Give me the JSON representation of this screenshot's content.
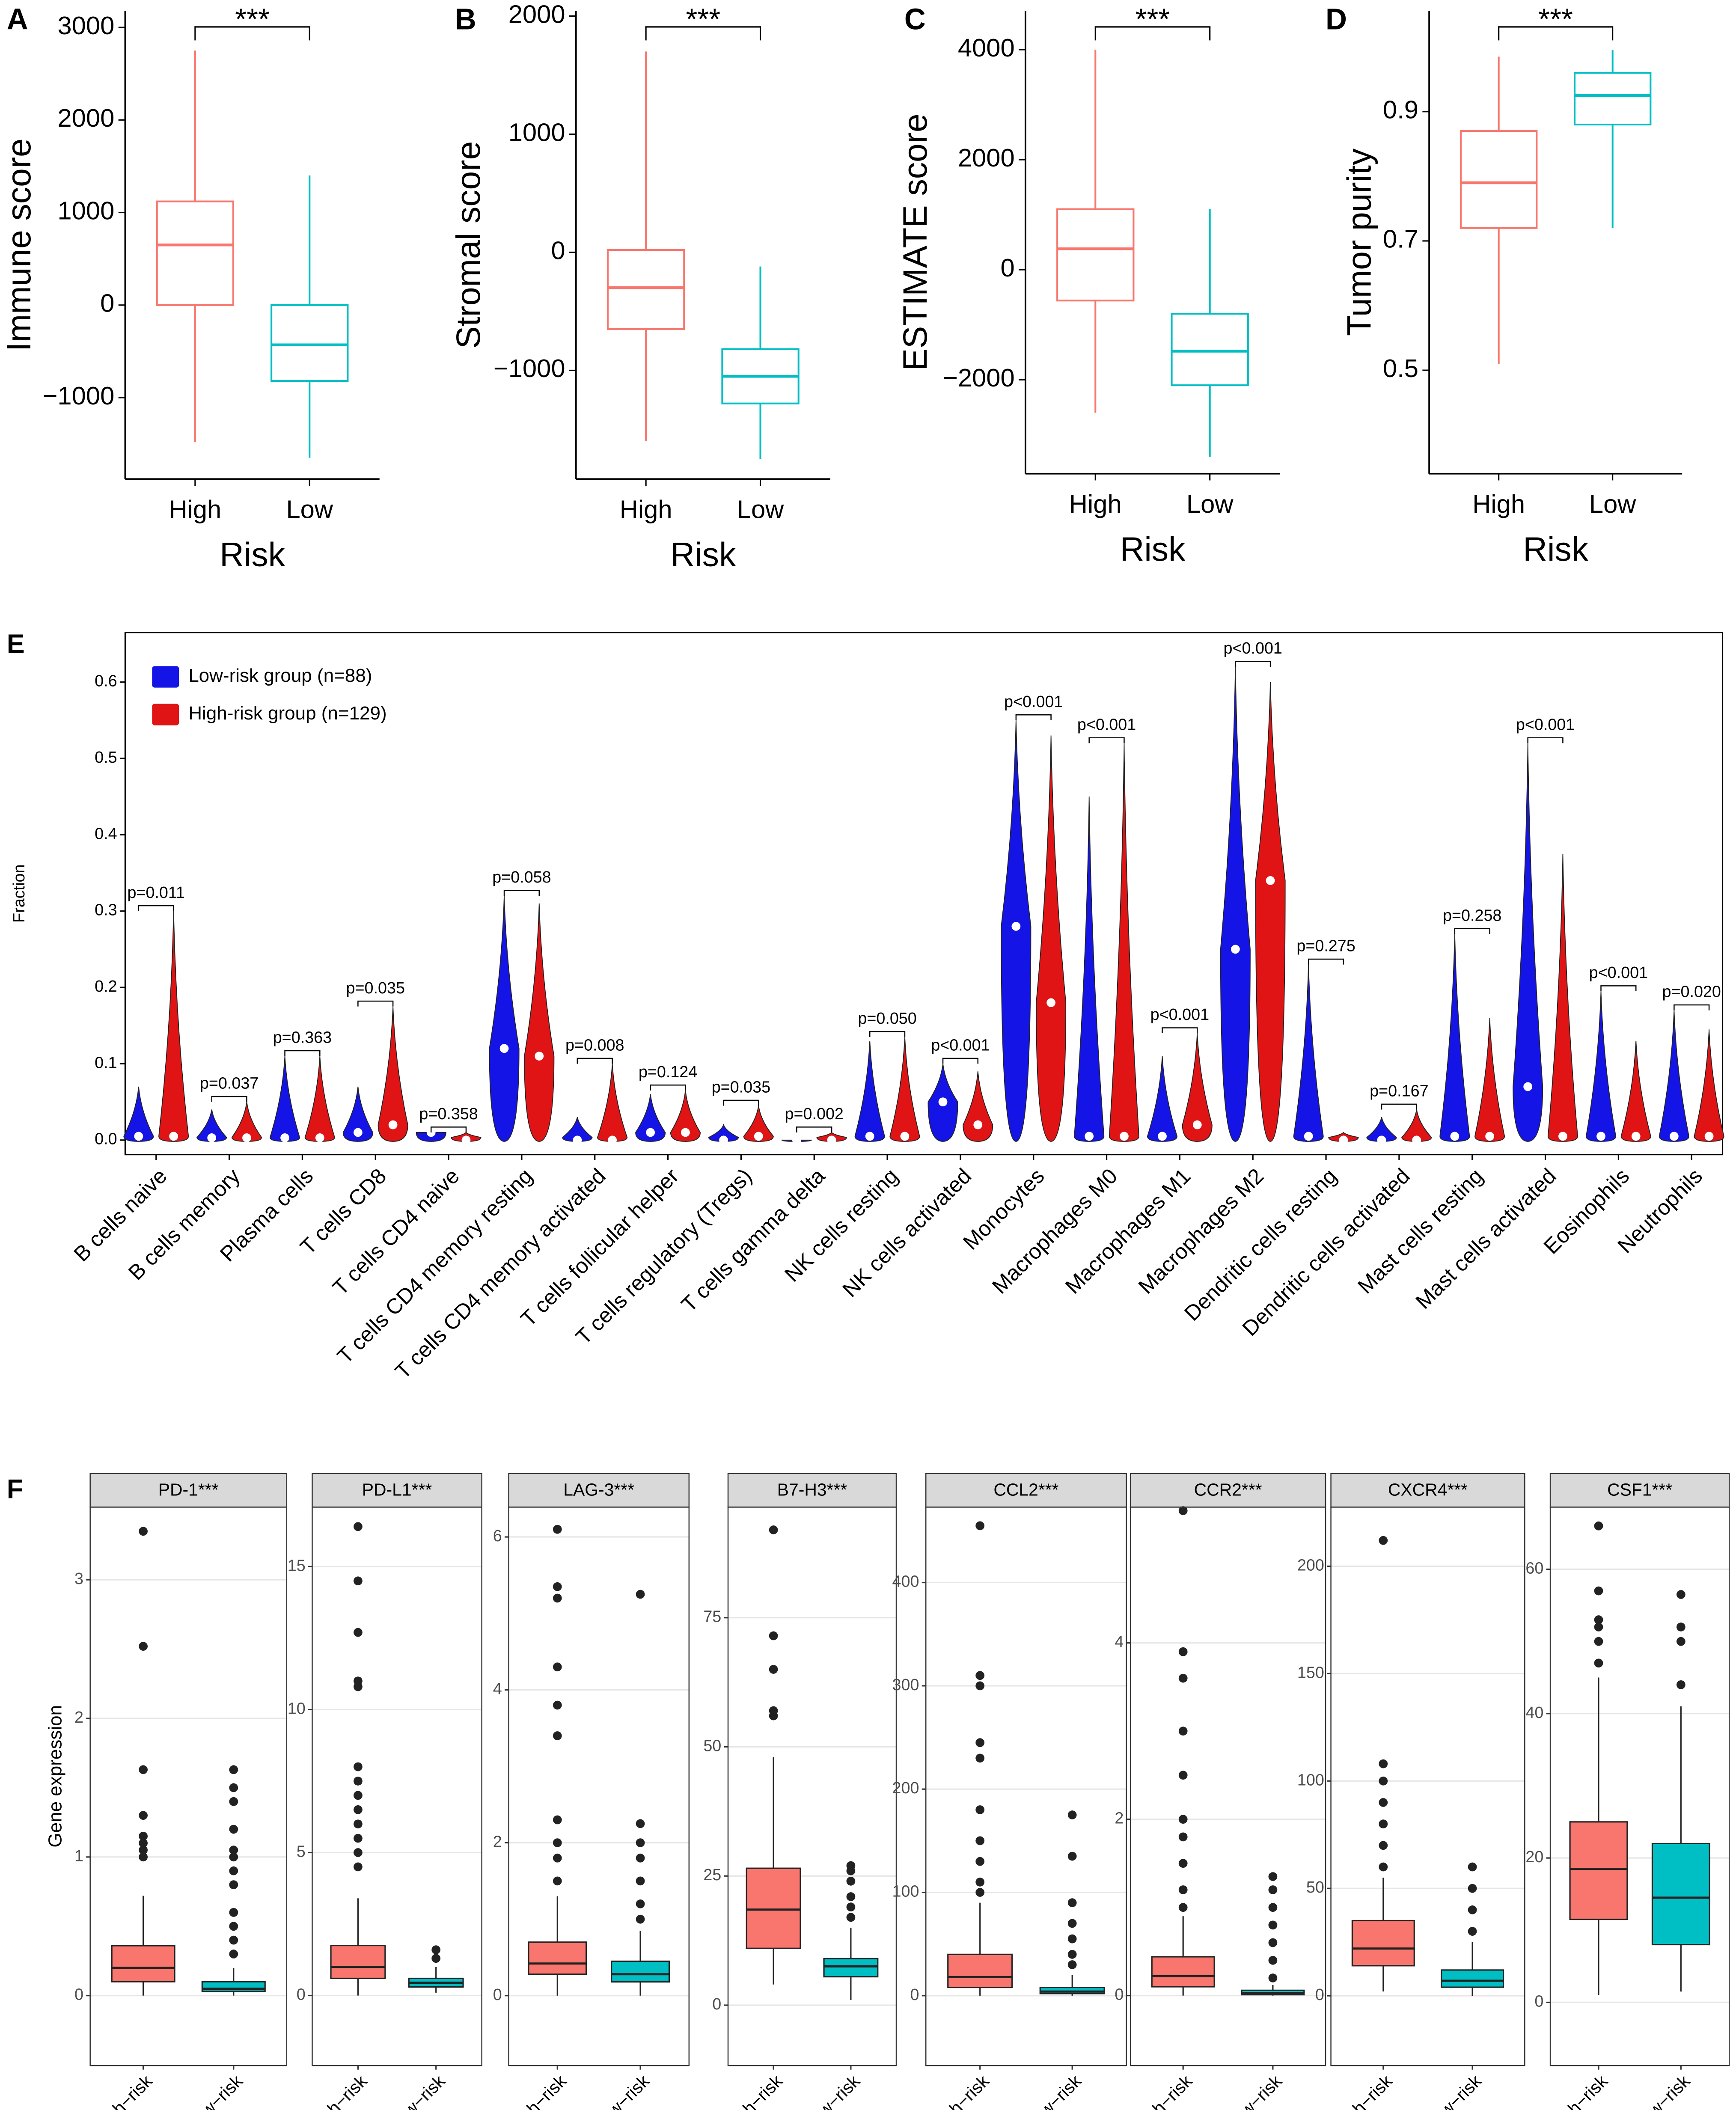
{
  "chart_data": [
    {
      "type": "box",
      "panel": "A",
      "ylabel": "Immune score",
      "xlabel": "Risk",
      "categories": [
        "High",
        "Low"
      ],
      "colors": [
        "#f8766d",
        "#00bfc4"
      ],
      "annotation": "***",
      "ylim": [
        -1880,
        3180
      ],
      "yticks": [
        {
          "value": -1000,
          "label": "−1000"
        },
        0,
        1000,
        2000,
        3000
      ],
      "boxes": [
        {
          "whislo": -1480,
          "q1": 0,
          "med": 650,
          "q3": 1120,
          "whishi": 2750
        },
        {
          "whislo": -1650,
          "q1": -820,
          "med": -430,
          "q3": 0,
          "whishi": 1400
        }
      ]
    },
    {
      "type": "box",
      "panel": "B",
      "ylabel": "Stromal score",
      "xlabel": "Risk",
      "categories": [
        "High",
        "Low"
      ],
      "colors": [
        "#f8766d",
        "#00bfc4"
      ],
      "annotation": "***",
      "ylim": [
        -1920,
        2045
      ],
      "yticks": [
        {
          "value": -1000,
          "label": "−1000"
        },
        0,
        1000,
        2000
      ],
      "boxes": [
        {
          "whislo": -1600,
          "q1": -650,
          "med": -300,
          "q3": 20,
          "whishi": 1700
        },
        {
          "whislo": -1750,
          "q1": -1280,
          "med": -1050,
          "q3": -820,
          "whishi": -120
        }
      ]
    },
    {
      "type": "box",
      "panel": "C",
      "ylabel": "ESTIMATE score",
      "xlabel": "Risk",
      "categories": [
        "High",
        "Low"
      ],
      "colors": [
        "#f8766d",
        "#00bfc4"
      ],
      "annotation": "***",
      "ylim": [
        -3707,
        4707
      ],
      "yticks": [
        {
          "value": -2000,
          "label": "−2000"
        },
        0,
        2000,
        4000
      ],
      "boxes": [
        {
          "whislo": -2600,
          "q1": -560,
          "med": 380,
          "q3": 1100,
          "whishi": 4000
        },
        {
          "whislo": -3400,
          "q1": -2100,
          "med": -1480,
          "q3": -800,
          "whishi": 1100
        }
      ]
    },
    {
      "type": "box",
      "panel": "D",
      "ylabel": "Tumor purity",
      "xlabel": "Risk",
      "categories": [
        "High",
        "Low"
      ],
      "colors": [
        "#f8766d",
        "#00bfc4"
      ],
      "annotation": "***",
      "ylim": [
        0.34,
        1.056
      ],
      "yticks": [
        0.5,
        0.7,
        0.9
      ],
      "boxes": [
        {
          "whislo": 0.51,
          "q1": 0.72,
          "med": 0.79,
          "q3": 0.87,
          "whishi": 0.985
        },
        {
          "whislo": 0.72,
          "q1": 0.88,
          "med": 0.925,
          "q3": 0.96,
          "whishi": 0.995
        }
      ]
    },
    {
      "type": "violin",
      "panel": "E",
      "ylabel": "Fraction",
      "legend": "top-left",
      "ylim": [
        -0.019,
        0.665
      ],
      "yticks": [
        {
          "value": 0,
          "label": "0.0"
        },
        0.1,
        0.2,
        0.3,
        0.4,
        0.5,
        0.6
      ],
      "categories": [
        "B cells naive",
        "B cells memory",
        "Plasma cells",
        "T cells CD8",
        "T cells CD4 naive",
        "T cells CD4 memory resting",
        "T cells CD4 memory activated",
        "T cells follicular helper",
        "T cells regulatory (Tregs)",
        "T cells gamma delta",
        "NK cells resting",
        "NK cells activated",
        "Monocytes",
        "Macrophages M0",
        "Macrophages M1",
        "Macrophages M2",
        "Dendritic cells resting",
        "Dendritic cells activated",
        "Mast cells resting",
        "Mast cells activated",
        "Eosinophils",
        "Neutrophils"
      ],
      "series": [
        {
          "name": "Low-risk group (n=88)",
          "color": "#1414e6",
          "median": [
            0.005,
            0.003,
            0.003,
            0.01,
            0.01,
            0.12,
            0.0,
            0.01,
            0.0,
            0.0,
            0.005,
            0.05,
            0.28,
            0.005,
            0.005,
            0.25,
            0.005,
            0.0,
            0.005,
            0.07,
            0.005,
            0.005
          ],
          "max": [
            0.07,
            0.04,
            0.11,
            0.07,
            0.01,
            0.32,
            0.03,
            0.06,
            0.02,
            0.0,
            0.13,
            0.1,
            0.55,
            0.45,
            0.11,
            0.62,
            0.23,
            0.03,
            0.27,
            0.52,
            0.195,
            0.17
          ]
        },
        {
          "name": "High-risk group (n=129)",
          "color": "#e01414",
          "median": [
            0.005,
            0.003,
            0.003,
            0.02,
            0.0,
            0.11,
            0.0,
            0.01,
            0.005,
            0.0,
            0.005,
            0.02,
            0.18,
            0.005,
            0.02,
            0.34,
            0.0,
            0.0,
            0.005,
            0.005,
            0.005,
            0.005
          ],
          "max": [
            0.3,
            0.05,
            0.11,
            0.175,
            0.01,
            0.31,
            0.1,
            0.065,
            0.045,
            0.01,
            0.135,
            0.09,
            0.53,
            0.52,
            0.14,
            0.6,
            0.01,
            0.04,
            0.16,
            0.375,
            0.13,
            0.145
          ]
        }
      ],
      "p_values": [
        "p=0.011",
        "p=0.037",
        "p=0.363",
        "p=0.035",
        "p=0.358",
        "p=0.058",
        "p=0.008",
        "p=0.124",
        "p=0.035",
        "p=0.002",
        "p=0.050",
        "p<0.001",
        "p<0.001",
        "p<0.001",
        "p<0.001",
        "p<0.001",
        "p=0.275",
        "p=0.167",
        "p=0.258",
        "p<0.001",
        "p<0.001",
        "p=0.020"
      ]
    },
    {
      "type": "facet-box",
      "panel": "F",
      "ylabel": "Gene expression",
      "categories": [
        "High−risk",
        "Low−risk"
      ],
      "colors": [
        "#f8766d",
        "#00bfc4"
      ],
      "facets": [
        {
          "title": "PD-1***",
          "ylim": [
            -0.505,
            3.524
          ],
          "yticks": [
            0,
            1,
            2,
            3
          ],
          "boxes": [
            {
              "whislo": 0,
              "q1": 0.1,
              "med": 0.2,
              "q3": 0.36,
              "whishi": 0.72,
              "fliers": [
                1.0,
                1.05,
                1.1,
                1.15,
                1.3,
                1.63,
                2.52,
                3.35
              ]
            },
            {
              "whislo": 0,
              "q1": 0.03,
              "med": 0.05,
              "q3": 0.1,
              "whishi": 0.2,
              "fliers": [
                0.3,
                0.4,
                0.5,
                0.6,
                0.8,
                0.9,
                1.0,
                1.05,
                1.2,
                1.4,
                1.5,
                1.63
              ]
            }
          ]
        },
        {
          "title": "PD-L1***",
          "ylim": [
            -2.45,
            17.08
          ],
          "yticks": [
            0,
            5,
            10,
            15
          ],
          "boxes": [
            {
              "whislo": 0,
              "q1": 0.6,
              "med": 1.0,
              "q3": 1.75,
              "whishi": 3.4,
              "fliers": [
                4.5,
                5,
                5.5,
                6,
                6.5,
                7,
                7.5,
                8,
                10.8,
                11,
                12.7,
                14.5,
                16.4
              ]
            },
            {
              "whislo": 0.1,
              "q1": 0.3,
              "med": 0.45,
              "q3": 0.6,
              "whishi": 1.0,
              "fliers": [
                1.3,
                1.6
              ]
            }
          ]
        },
        {
          "title": "LAG-3***",
          "ylim": [
            -0.915,
            6.39
          ],
          "yticks": [
            0,
            2,
            4,
            6
          ],
          "boxes": [
            {
              "whislo": 0,
              "q1": 0.28,
              "med": 0.42,
              "q3": 0.7,
              "whishi": 1.3,
              "fliers": [
                1.5,
                1.8,
                2,
                2.3,
                3.4,
                3.8,
                4.3,
                5.2,
                5.35,
                6.1
              ]
            },
            {
              "whislo": 0,
              "q1": 0.18,
              "med": 0.28,
              "q3": 0.45,
              "whishi": 0.85,
              "fliers": [
                1,
                1.2,
                1.5,
                1.8,
                2,
                2.25,
                5.25
              ]
            }
          ]
        },
        {
          "title": "B7-H3***",
          "ylim": [
            -11.7,
            96.4
          ],
          "yticks": [
            0,
            25,
            50,
            75
          ],
          "boxes": [
            {
              "whislo": 4,
              "q1": 11,
              "med": 18.5,
              "q3": 26.5,
              "whishi": 48,
              "fliers": [
                56,
                57,
                65,
                71.5,
                92
              ]
            },
            {
              "whislo": 1,
              "q1": 5.5,
              "med": 7.5,
              "q3": 9,
              "whishi": 15,
              "fliers": [
                17,
                19,
                21,
                24,
                26,
                27
              ]
            }
          ]
        },
        {
          "title": "CCL2***",
          "ylim": [
            -67.7,
            473
          ],
          "yticks": [
            0,
            100,
            200,
            300,
            400
          ],
          "boxes": [
            {
              "whislo": 0,
              "q1": 8,
              "med": 18,
              "q3": 40,
              "whishi": 90,
              "fliers": [
                100,
                110,
                130,
                150,
                180,
                230,
                245,
                300,
                310,
                455
              ]
            },
            {
              "whislo": 0,
              "q1": 2,
              "med": 4,
              "q3": 8,
              "whishi": 20,
              "fliers": [
                30,
                40,
                55,
                70,
                90,
                135,
                175
              ]
            }
          ]
        },
        {
          "title": "CCR2***",
          "ylim": [
            -0.794,
            5.54
          ],
          "yticks": [
            0,
            2,
            4
          ],
          "boxes": [
            {
              "whislo": 0,
              "q1": 0.1,
              "med": 0.22,
              "q3": 0.44,
              "whishi": 0.9,
              "fliers": [
                1,
                1.2,
                1.5,
                1.8,
                2,
                2.5,
                3,
                3.6,
                3.9,
                5.5
              ]
            },
            {
              "whislo": 0,
              "q1": 0.01,
              "med": 0.03,
              "q3": 0.06,
              "whishi": 0.12,
              "fliers": [
                0.2,
                0.4,
                0.6,
                0.8,
                1,
                1.2,
                1.35
              ]
            }
          ]
        },
        {
          "title": "CXCR4***",
          "ylim": [
            -32.5,
            227.5
          ],
          "yticks": [
            0,
            50,
            100,
            150,
            200
          ],
          "boxes": [
            {
              "whislo": 2,
              "q1": 14,
              "med": 22,
              "q3": 35,
              "whishi": 55,
              "fliers": [
                60,
                70,
                80,
                90,
                100,
                108,
                212
              ]
            },
            {
              "whislo": 0,
              "q1": 4,
              "med": 7,
              "q3": 12,
              "whishi": 25,
              "fliers": [
                30,
                40,
                50,
                60
              ]
            }
          ]
        },
        {
          "title": "CSF1***",
          "ylim": [
            -8.76,
            68.6
          ],
          "yticks": [
            0,
            20,
            40,
            60
          ],
          "boxes": [
            {
              "whislo": 1,
              "q1": 11.5,
              "med": 18.5,
              "q3": 25,
              "whishi": 45,
              "fliers": [
                47,
                50,
                52,
                53,
                57,
                66
              ]
            },
            {
              "whislo": 1.5,
              "q1": 8,
              "med": 14.5,
              "q3": 22,
              "whishi": 41,
              "fliers": [
                44,
                50,
                52,
                56.5
              ]
            }
          ]
        }
      ]
    }
  ]
}
